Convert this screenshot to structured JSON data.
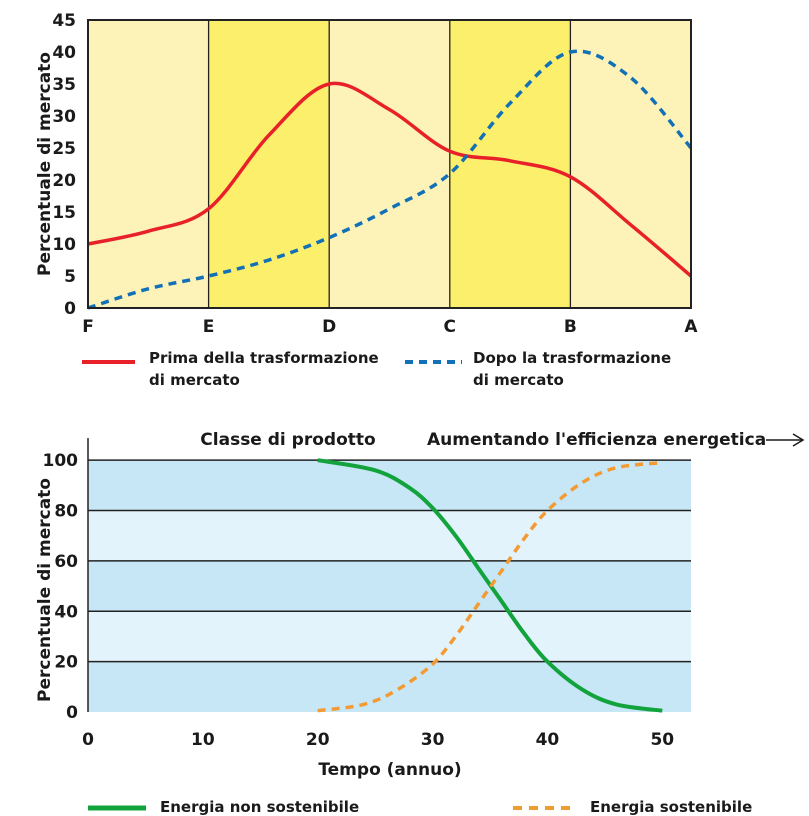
{
  "chart_data": [
    {
      "type": "line",
      "title": "",
      "xlabel": "",
      "ylabel": "Percentuale di mercato",
      "ylim": [
        0,
        45
      ],
      "yticks": [
        0,
        5,
        10,
        15,
        20,
        25,
        30,
        35,
        40,
        45
      ],
      "categories": [
        "F",
        "E",
        "D",
        "C",
        "B",
        "A"
      ],
      "band_colors": [
        "#fdf3b8",
        "#fcef6b"
      ],
      "series": [
        {
          "name": "Prima della trasformazione di mercato",
          "color": "#e8202a",
          "style": "solid",
          "x": [
            0,
            0.5,
            1,
            1.5,
            2,
            2.5,
            3,
            3.5,
            4,
            4.5,
            5
          ],
          "values": [
            10,
            12,
            15.5,
            27,
            35,
            31,
            24.5,
            23,
            20.5,
            13,
            5
          ]
        },
        {
          "name": "Dopo la trasformazione di mercato",
          "color": "#1271b6",
          "style": "dashed",
          "x": [
            0,
            0.5,
            1,
            1.5,
            2,
            2.5,
            3,
            3.5,
            4,
            4.5,
            5
          ],
          "values": [
            0,
            3,
            5,
            7.5,
            11,
            15.5,
            21,
            32,
            40,
            36,
            25
          ]
        }
      ],
      "legend": {
        "placement": "bottom",
        "items": [
          {
            "line1": "Prima della trasformazione",
            "line2": "di mercato"
          },
          {
            "line1": "Dopo la trasformazione",
            "line2": "di mercato"
          }
        ]
      }
    },
    {
      "type": "line",
      "title": "",
      "header_left": "Classe di prodotto",
      "header_right": "Aumentando l'efficienza energetica",
      "xlabel": "Tempo (annuo)",
      "ylabel": "Percentuale di mercato",
      "xlim": [
        0,
        52.5
      ],
      "ylim": [
        0,
        110
      ],
      "xticks": [
        0,
        10,
        20,
        30,
        40,
        50
      ],
      "yticks": [
        0,
        20,
        40,
        60,
        80,
        100
      ],
      "band_colors": [
        "#c7e7f7",
        "#e2f3fb"
      ],
      "series": [
        {
          "name": "Energia non sostenibile",
          "color": "#12a33c",
          "style": "solid",
          "x": [
            20,
            25,
            28,
            30,
            32,
            34,
            36,
            38,
            40,
            43,
            46,
            50
          ],
          "values": [
            100,
            96,
            89,
            81,
            70,
            57,
            44,
            31,
            20,
            9,
            3,
            0.5
          ]
        },
        {
          "name": "Energia sostenibile",
          "color": "#f39b33",
          "style": "dashed",
          "x": [
            20,
            24,
            27,
            30,
            32,
            34,
            36,
            38,
            40,
            43,
            46,
            50
          ],
          "values": [
            0.5,
            3,
            9,
            19,
            30,
            43,
            56,
            69,
            80,
            91,
            97,
            99
          ]
        }
      ],
      "legend": {
        "placement": "bottom",
        "items": [
          "Energia non sostenibile",
          "Energia sostenibile"
        ]
      }
    }
  ]
}
